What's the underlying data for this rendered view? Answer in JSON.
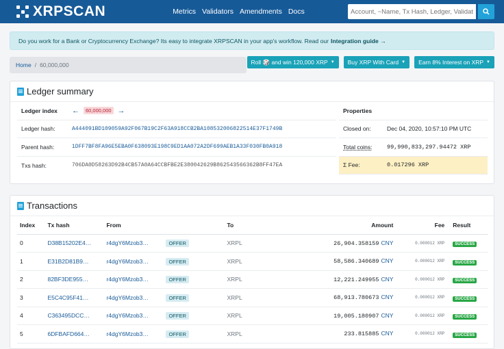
{
  "nav": {
    "logo": "XRPSCAN",
    "links": [
      "Metrics",
      "Validators",
      "Amendments",
      "Docs"
    ],
    "search_placeholder": "Account, ~Name, Tx Hash, Ledger, Validator"
  },
  "alert": {
    "text": "Do you work for a Bank or Cryptocurrency Exchange? Its easy to integrate XRPSCAN in your app's workflow. Read our",
    "link": "Integration guide →"
  },
  "breadcrumb": {
    "home": "Home",
    "separator": "/",
    "current": "60,000,000"
  },
  "buttons": [
    "Roll 🎲 and win 120,000 XRP",
    "Buy XRP With Card",
    "Earn 8% Interest on XRP"
  ],
  "summary": {
    "title": "Ledger summary",
    "ledger_index_label": "Ledger index",
    "ledger_index": "60,000,000",
    "ledger_hash_label": "Ledger hash:",
    "ledger_hash": "A444091BD109059A92F067B19C2F63A918CCB2BA108532006822514E37F1749B",
    "parent_hash_label": "Parent hash:",
    "parent_hash": "1DFF7BF8FA96E5EBA0F638093E198C9ED1AA072A2DF699AEB1A33F030FB0A918",
    "txs_hash_label": "Txs hash:",
    "txs_hash": "706DA0D58263D92B4CB57A0A64CCBFBE2E380042629B862543566362B8FF47EA",
    "properties_label": "Properties",
    "closed_on_label": "Closed on:",
    "closed_on": "Dec 04, 2020, 10:57:10 PM UTC",
    "total_coins_label": "Total coins:",
    "total_coins": "99,990,833,297.94472 XRP",
    "fee_label": "Σ Fee:",
    "fee": "0.017296 XRP"
  },
  "transactions": {
    "title": "Transactions",
    "headers": [
      "Index",
      "Tx hash",
      "From",
      "To",
      "Amount",
      "Fee",
      "Result"
    ],
    "rows": [
      {
        "index": "0",
        "hash": "D38B15202E4…",
        "from": "r4dgY6Mzob3…",
        "type": "OFFER",
        "to": "XRPL",
        "amount": "26,904.358159",
        "currency": "CNY",
        "fee": "0.000012 XRP",
        "result": "SUCCESS"
      },
      {
        "index": "1",
        "hash": "E31B2D81B9…",
        "from": "r4dgY6Mzob3…",
        "type": "OFFER",
        "to": "XRPL",
        "amount": "58,586.340689",
        "currency": "CNY",
        "fee": "0.000012 XRP",
        "result": "SUCCESS"
      },
      {
        "index": "2",
        "hash": "82BF3DE955…",
        "from": "r4dgY6Mzob3…",
        "type": "OFFER",
        "to": "XRPL",
        "amount": "12,221.249955",
        "currency": "CNY",
        "fee": "0.000012 XRP",
        "result": "SUCCESS"
      },
      {
        "index": "3",
        "hash": "E5C4C95F41…",
        "from": "r4dgY6Mzob3…",
        "type": "OFFER",
        "to": "XRPL",
        "amount": "68,913.780673",
        "currency": "CNY",
        "fee": "0.000012 XRP",
        "result": "SUCCESS"
      },
      {
        "index": "4",
        "hash": "C363495DCC…",
        "from": "r4dgY6Mzob3…",
        "type": "OFFER",
        "to": "XRPL",
        "amount": "19,005.180907",
        "currency": "CNY",
        "fee": "0.000012 XRP",
        "result": "SUCCESS"
      },
      {
        "index": "5",
        "hash": "6DFBAFD664…",
        "from": "r4dgY6Mzob3…",
        "type": "OFFER",
        "to": "XRPL",
        "amount": "233.815885",
        "currency": "CNY",
        "fee": "0.000012 XRP",
        "result": "SUCCESS"
      }
    ]
  }
}
